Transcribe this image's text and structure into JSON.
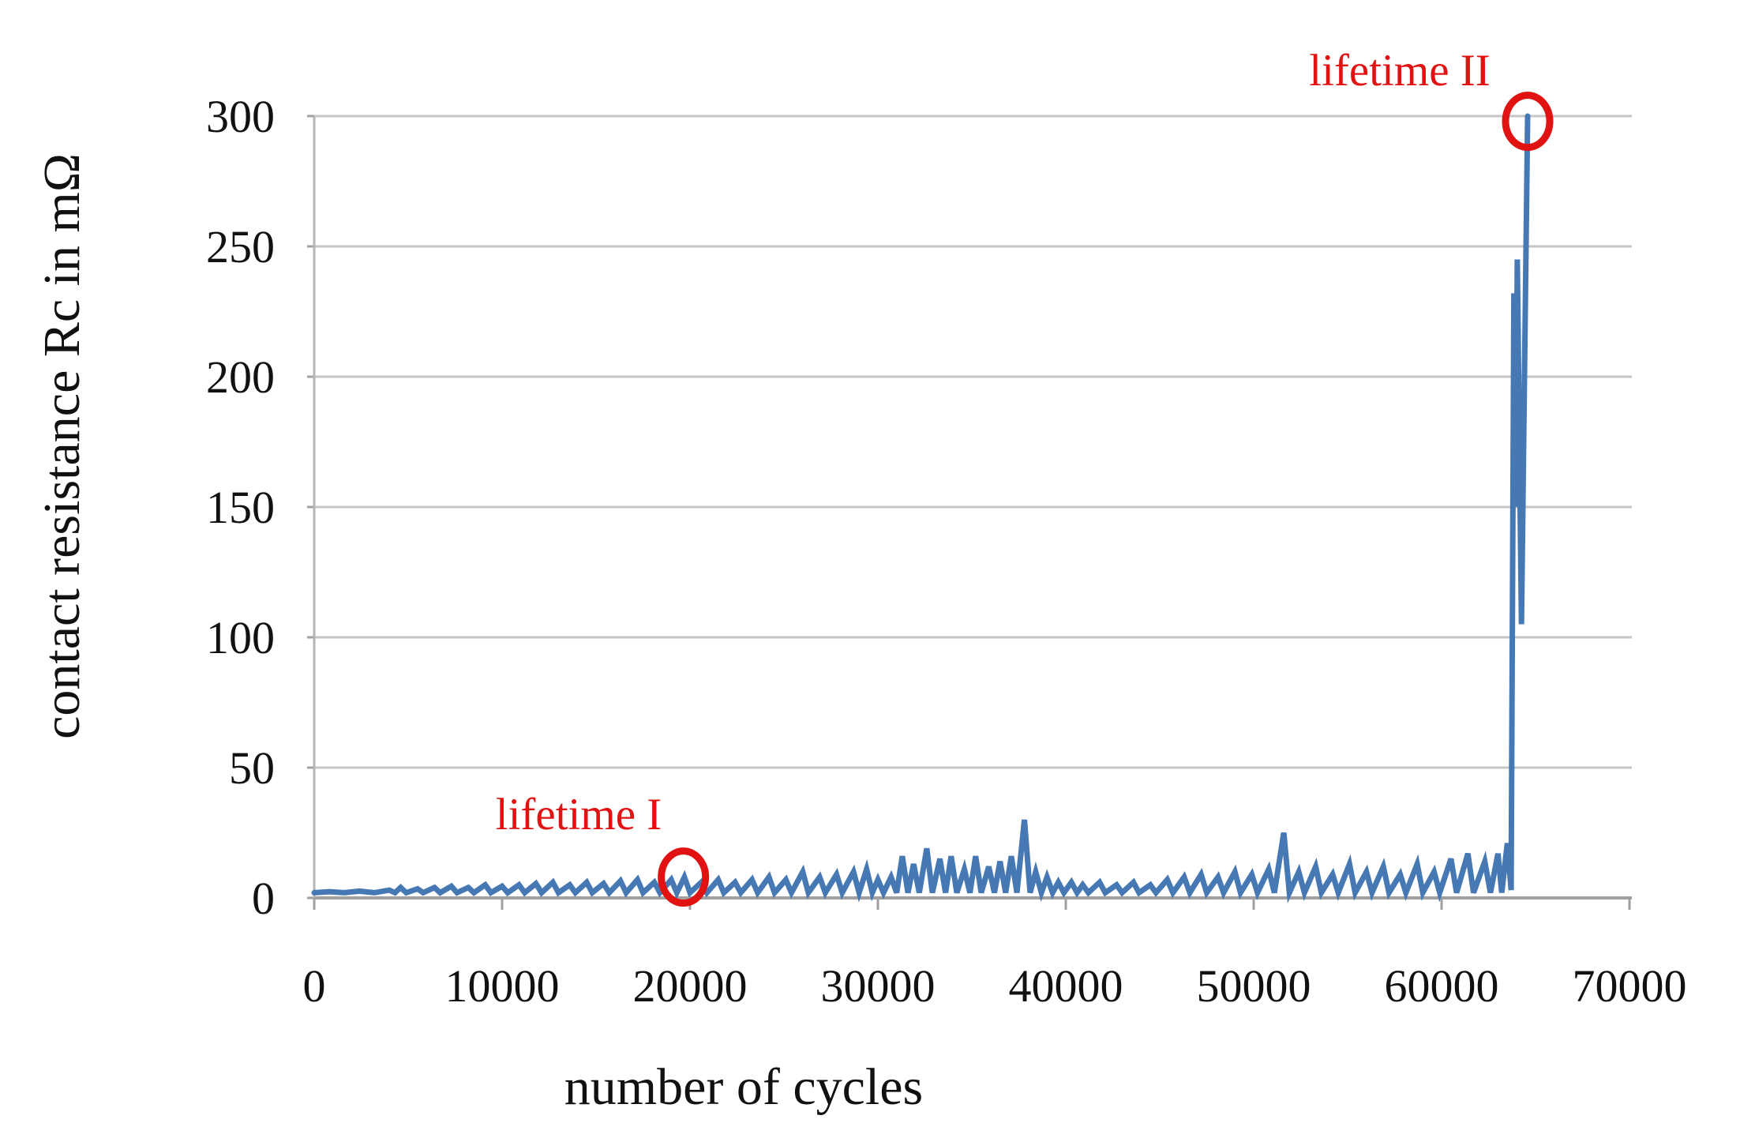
{
  "chart_data": {
    "type": "line",
    "title": "",
    "xlabel": "number of cycles",
    "ylabel": "contact resistance Rc in mΩ",
    "xlim": [
      0,
      70000
    ],
    "ylim": [
      0,
      300
    ],
    "x_ticks": [
      0,
      10000,
      20000,
      30000,
      40000,
      50000,
      60000,
      70000
    ],
    "x_tick_labels": [
      "0",
      "10000",
      "20000",
      "30000",
      "40000",
      "50000",
      "60000",
      "70000"
    ],
    "y_ticks": [
      0,
      50,
      100,
      150,
      200,
      250,
      300
    ],
    "y_tick_labels": [
      "0",
      "50",
      "100",
      "150",
      "200",
      "250",
      "300"
    ],
    "grid": "horizontal-only",
    "legend": "none",
    "colors": {
      "series_blue": "#4678b4",
      "annotation_red": "#e11212",
      "gridline_gray": "#c6c6c6",
      "axis_gray": "#a0a0a0",
      "text_black": "#111111"
    },
    "series": [
      {
        "name": "contact resistance Rc",
        "color": "#4678b4",
        "points": [
          [
            0,
            2
          ],
          [
            800,
            2.4
          ],
          [
            1600,
            2
          ],
          [
            2400,
            2.6
          ],
          [
            3200,
            2
          ],
          [
            4000,
            3
          ],
          [
            4300,
            2
          ],
          [
            4600,
            4
          ],
          [
            4900,
            2
          ],
          [
            5500,
            3.5
          ],
          [
            5800,
            2
          ],
          [
            6400,
            4
          ],
          [
            6700,
            2
          ],
          [
            7300,
            4.5
          ],
          [
            7600,
            2
          ],
          [
            8200,
            4
          ],
          [
            8500,
            2
          ],
          [
            9100,
            5
          ],
          [
            9400,
            2
          ],
          [
            10000,
            4.5
          ],
          [
            10300,
            2
          ],
          [
            10900,
            5
          ],
          [
            11200,
            2
          ],
          [
            11800,
            5.5
          ],
          [
            12100,
            2
          ],
          [
            12700,
            6
          ],
          [
            13000,
            2
          ],
          [
            13600,
            5
          ],
          [
            13900,
            2
          ],
          [
            14500,
            6
          ],
          [
            14800,
            2
          ],
          [
            15400,
            5.5
          ],
          [
            15700,
            2
          ],
          [
            16300,
            6.5
          ],
          [
            16600,
            2
          ],
          [
            17200,
            7
          ],
          [
            17500,
            2
          ],
          [
            18100,
            6
          ],
          [
            18400,
            2
          ],
          [
            19000,
            7
          ],
          [
            19300,
            2
          ],
          [
            19700,
            8
          ],
          [
            20000,
            2
          ],
          [
            20600,
            6
          ],
          [
            20900,
            2
          ],
          [
            21500,
            7
          ],
          [
            21800,
            2
          ],
          [
            22400,
            6
          ],
          [
            22700,
            2
          ],
          [
            23300,
            7
          ],
          [
            23600,
            2
          ],
          [
            24200,
            8
          ],
          [
            24500,
            2
          ],
          [
            25100,
            7
          ],
          [
            25400,
            2
          ],
          [
            26000,
            10
          ],
          [
            26300,
            2
          ],
          [
            26900,
            8
          ],
          [
            27200,
            2
          ],
          [
            27800,
            9
          ],
          [
            28100,
            2
          ],
          [
            28700,
            10
          ],
          [
            29000,
            2
          ],
          [
            29400,
            11
          ],
          [
            29700,
            2
          ],
          [
            30000,
            7
          ],
          [
            30300,
            2
          ],
          [
            30700,
            8
          ],
          [
            31000,
            2
          ],
          [
            31300,
            16
          ],
          [
            31600,
            2
          ],
          [
            31900,
            13
          ],
          [
            32200,
            2
          ],
          [
            32600,
            19
          ],
          [
            32900,
            2
          ],
          [
            33300,
            15
          ],
          [
            33600,
            2
          ],
          [
            33900,
            16
          ],
          [
            34200,
            2
          ],
          [
            34600,
            11
          ],
          [
            34900,
            2
          ],
          [
            35200,
            16
          ],
          [
            35500,
            2
          ],
          [
            35900,
            12
          ],
          [
            36200,
            2
          ],
          [
            36500,
            14
          ],
          [
            36800,
            2
          ],
          [
            37100,
            16
          ],
          [
            37400,
            2
          ],
          [
            37800,
            30
          ],
          [
            38100,
            2
          ],
          [
            38400,
            10
          ],
          [
            38700,
            2
          ],
          [
            39000,
            8
          ],
          [
            39300,
            2
          ],
          [
            39600,
            6
          ],
          [
            39900,
            2
          ],
          [
            40300,
            6
          ],
          [
            40600,
            2
          ],
          [
            40900,
            5
          ],
          [
            41200,
            2
          ],
          [
            41800,
            6
          ],
          [
            42100,
            2
          ],
          [
            42700,
            5
          ],
          [
            43000,
            2
          ],
          [
            43600,
            6
          ],
          [
            43900,
            2
          ],
          [
            44500,
            5
          ],
          [
            44800,
            2
          ],
          [
            45400,
            7
          ],
          [
            45700,
            2
          ],
          [
            46300,
            8
          ],
          [
            46600,
            2
          ],
          [
            47200,
            9
          ],
          [
            47500,
            2
          ],
          [
            48100,
            8
          ],
          [
            48400,
            2
          ],
          [
            49000,
            10
          ],
          [
            49300,
            2
          ],
          [
            49900,
            9
          ],
          [
            50200,
            2
          ],
          [
            50800,
            11
          ],
          [
            51100,
            2
          ],
          [
            51600,
            25
          ],
          [
            51900,
            2
          ],
          [
            52400,
            10
          ],
          [
            52700,
            2
          ],
          [
            53300,
            12
          ],
          [
            53600,
            2
          ],
          [
            54200,
            9
          ],
          [
            54500,
            2
          ],
          [
            55100,
            13
          ],
          [
            55400,
            2
          ],
          [
            56000,
            10
          ],
          [
            56300,
            2
          ],
          [
            56900,
            12
          ],
          [
            57200,
            2
          ],
          [
            57800,
            9
          ],
          [
            58100,
            2
          ],
          [
            58700,
            13
          ],
          [
            59000,
            2
          ],
          [
            59600,
            10
          ],
          [
            59900,
            2
          ],
          [
            60500,
            15
          ],
          [
            60800,
            2
          ],
          [
            61400,
            17
          ],
          [
            61700,
            2
          ],
          [
            62300,
            14
          ],
          [
            62600,
            2
          ],
          [
            63000,
            17
          ],
          [
            63200,
            2
          ],
          [
            63500,
            21
          ],
          [
            63700,
            3
          ],
          [
            63850,
            232
          ],
          [
            63950,
            150
          ],
          [
            64030,
            245
          ],
          [
            64250,
            105
          ],
          [
            64580,
            300
          ]
        ]
      }
    ],
    "annotations": [
      {
        "label": "lifetime I",
        "color": "#e11212",
        "circle_at": {
          "cycles": 19650,
          "value": 8
        }
      },
      {
        "label": "lifetime II",
        "color": "#e11212",
        "circle_at": {
          "cycles": 64580,
          "value": 298
        }
      }
    ]
  }
}
